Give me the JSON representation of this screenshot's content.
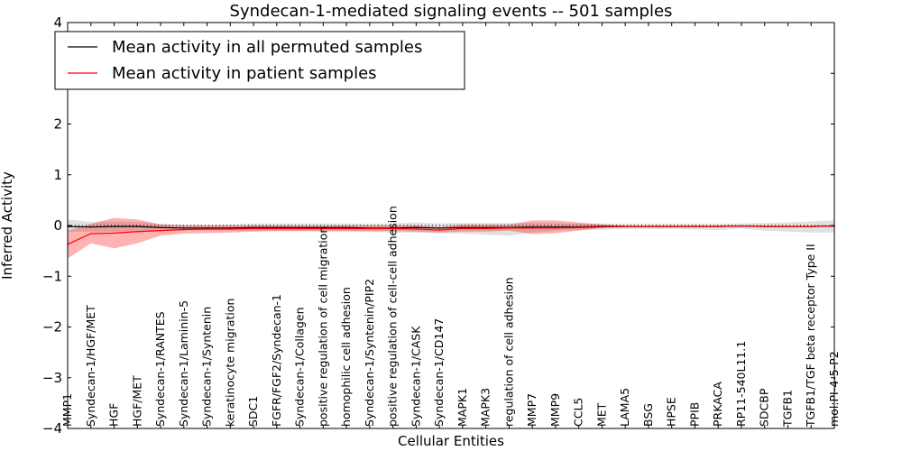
{
  "chart_data": {
    "type": "line",
    "title": "Syndecan-1-mediated signaling events -- 501 samples",
    "xlabel": "Cellular Entities",
    "ylabel": "Inferred Activity",
    "ylim": [
      -4,
      4
    ],
    "yticks": [
      "4",
      "3",
      "2",
      "1",
      "0",
      "−1",
      "−2",
      "−3",
      "−4"
    ],
    "grid": false,
    "legend_position": "top-left",
    "categories": [
      "MMP1",
      "Syndecan-1/HGF/MET",
      "HGF",
      "HGF/MET",
      "Syndecan-1/RANTES",
      "Syndecan-1/Laminin-5",
      "Syndecan-1/Syntenin",
      "keratinocyte migration",
      "SDC1",
      "FGFR/FGF2/Syndecan-1",
      "Syndecan-1/Collagen",
      "positive regulation of cell migration",
      "homophilic cell adhesion",
      "Syndecan-1/Syntenin/PIP2",
      "positive regulation of cell-cell adhesion",
      "Syndecan-1/CASK",
      "Syndecan-1/CD147",
      "MAPK1",
      "MAPK3",
      "regulation of cell adhesion",
      "MMP7",
      "MMP9",
      "CCL5",
      "MET",
      "LAMA5",
      "BSG",
      "HPSE",
      "PPIB",
      "PRKACA",
      "RP11-540L11.1",
      "SDCBP",
      "TGFB1",
      "TGFB1/TGF beta receptor Type II",
      "mol:PI-4-5-P2"
    ],
    "series": [
      {
        "name": "Mean activity in all permuted samples",
        "color": "#000000",
        "band_color": "#bbbbbb",
        "values": [
          -0.02,
          -0.03,
          -0.02,
          -0.02,
          -0.04,
          -0.05,
          -0.05,
          -0.05,
          -0.04,
          -0.04,
          -0.04,
          -0.04,
          -0.04,
          -0.05,
          -0.05,
          -0.04,
          -0.05,
          -0.04,
          -0.04,
          -0.04,
          -0.03,
          -0.03,
          -0.03,
          -0.02,
          -0.02,
          -0.02,
          -0.02,
          -0.02,
          -0.02,
          -0.01,
          -0.02,
          -0.02,
          -0.02,
          -0.01
        ],
        "lower": [
          -0.13,
          -0.12,
          -0.12,
          -0.11,
          -0.1,
          -0.1,
          -0.1,
          -0.1,
          -0.11,
          -0.11,
          -0.11,
          -0.12,
          -0.12,
          -0.13,
          -0.14,
          -0.14,
          -0.15,
          -0.16,
          -0.18,
          -0.2,
          -0.14,
          -0.1,
          -0.09,
          -0.08,
          -0.07,
          -0.07,
          -0.07,
          -0.08,
          -0.09,
          -0.06,
          -0.1,
          -0.12,
          -0.14,
          -0.14
        ],
        "upper": [
          0.12,
          0.07,
          0.08,
          0.07,
          0.03,
          0.02,
          0.02,
          0.02,
          0.04,
          0.04,
          0.04,
          0.04,
          0.04,
          0.03,
          0.04,
          0.06,
          0.04,
          0.05,
          0.05,
          0.05,
          0.05,
          0.05,
          0.04,
          0.04,
          0.03,
          0.03,
          0.03,
          0.03,
          0.03,
          0.04,
          0.05,
          0.06,
          0.08,
          0.1
        ]
      },
      {
        "name": "Mean activity in patient samples",
        "color": "#ff0000",
        "band_color": "#ff0000",
        "values": [
          -0.37,
          -0.16,
          -0.15,
          -0.12,
          -0.1,
          -0.08,
          -0.07,
          -0.07,
          -0.06,
          -0.06,
          -0.06,
          -0.06,
          -0.06,
          -0.06,
          -0.06,
          -0.07,
          -0.09,
          -0.06,
          -0.06,
          -0.05,
          -0.05,
          -0.05,
          -0.04,
          -0.03,
          -0.02,
          -0.02,
          -0.02,
          -0.02,
          -0.02,
          -0.01,
          -0.02,
          -0.02,
          -0.02,
          -0.01
        ],
        "lower": [
          -0.65,
          -0.35,
          -0.45,
          -0.35,
          -0.2,
          -0.16,
          -0.15,
          -0.14,
          -0.12,
          -0.11,
          -0.11,
          -0.11,
          -0.11,
          -0.11,
          -0.11,
          -0.12,
          -0.14,
          -0.12,
          -0.12,
          -0.1,
          -0.17,
          -0.15,
          -0.1,
          -0.05,
          -0.03,
          -0.03,
          -0.03,
          -0.03,
          -0.03,
          -0.02,
          -0.03,
          -0.03,
          -0.03,
          -0.02
        ],
        "upper": [
          -0.1,
          0.03,
          0.15,
          0.12,
          0.02,
          0.0,
          0.0,
          0.0,
          0.0,
          0.0,
          -0.01,
          -0.01,
          0.0,
          0.0,
          0.0,
          0.0,
          -0.03,
          0.02,
          0.02,
          0.02,
          0.1,
          0.1,
          0.06,
          0.02,
          -0.01,
          -0.01,
          -0.01,
          -0.01,
          -0.01,
          0.0,
          -0.01,
          -0.01,
          -0.01,
          0.0
        ]
      }
    ],
    "reference_line": {
      "style": "dotted",
      "value": 0
    }
  }
}
